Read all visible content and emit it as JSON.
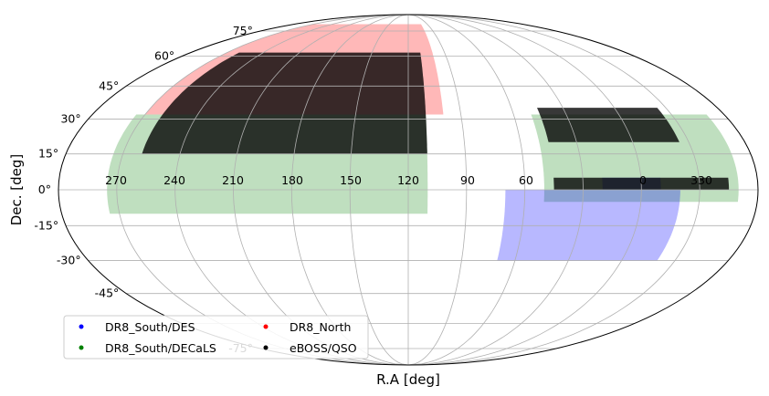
{
  "chart_data": {
    "type": "scatter",
    "projection": "mollweide",
    "title": "",
    "xlabel": "R.A [deg]",
    "ylabel": "Dec. [deg]",
    "grid": true,
    "legend_placement": "lower-left",
    "ra_tick_labels": [
      "270",
      "240",
      "210",
      "180",
      "150",
      "120",
      "90",
      "60",
      "0",
      "330"
    ],
    "dec_tick_labels": [
      {
        "dec": 75,
        "label": "75°"
      },
      {
        "dec": 60,
        "label": "60°"
      },
      {
        "dec": 45,
        "label": "45°"
      },
      {
        "dec": 30,
        "label": "30°"
      },
      {
        "dec": 15,
        "label": "15°"
      },
      {
        "dec": 0,
        "label": "0°"
      },
      {
        "dec": -15,
        "label": "-15°"
      },
      {
        "dec": -30,
        "label": "-30°"
      },
      {
        "dec": -45,
        "label": "-45°"
      },
      {
        "dec": -75,
        "label": "-75°"
      }
    ],
    "series": [
      {
        "name": "DR8_South/DES",
        "color": "#0000ff",
        "regions": [
          {
            "ra_range": [
              -20,
              70
            ],
            "dec_range": [
              -30,
              0
            ]
          },
          {
            "ra_range": [
              -10,
              20
            ],
            "dec_range": [
              0,
              5
            ]
          }
        ]
      },
      {
        "name": "DR8_South/DECaLS",
        "color": "#008000",
        "regions": [
          {
            "ra_range": [
              110,
              275
            ],
            "dec_range": [
              -10,
              32
            ]
          },
          {
            "ra_range": [
              -50,
              50
            ],
            "dec_range": [
              -5,
              32
            ]
          }
        ]
      },
      {
        "name": "DR8_North",
        "color": "#ff0000",
        "regions": [
          {
            "ra_range": [
              100,
              270
            ],
            "dec_range": [
              32,
              80
            ]
          }
        ]
      },
      {
        "name": "eBOSS/QSO",
        "color": "#000000",
        "regions": [
          {
            "ra_range": [
              110,
              260
            ],
            "dec_range": [
              15,
              62
            ]
          },
          {
            "ra_range": [
              -25,
              45
            ],
            "dec_range": [
              20,
              35
            ]
          },
          {
            "ra_range": [
              -45,
              45
            ],
            "dec_range": [
              0,
              5
            ]
          }
        ]
      }
    ]
  }
}
